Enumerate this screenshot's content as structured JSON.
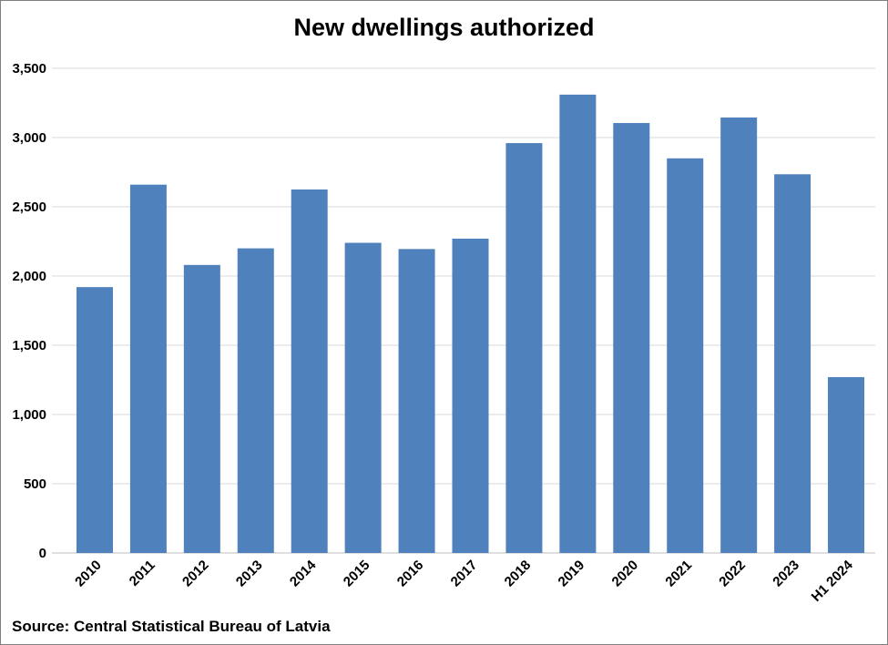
{
  "chart_data": {
    "type": "bar",
    "title": "New dwellings authorized",
    "source": "Source: Central Statistical Bureau of Latvia",
    "xlabel": "",
    "ylabel": "",
    "categories": [
      "2010",
      "2011",
      "2012",
      "2013",
      "2014",
      "2015",
      "2016",
      "2017",
      "2018",
      "2019",
      "2020",
      "2021",
      "2022",
      "2023",
      "H1 2024"
    ],
    "values": [
      1920,
      2660,
      2080,
      2200,
      2625,
      2240,
      2195,
      2270,
      2960,
      3310,
      3105,
      2850,
      3145,
      2735,
      1270
    ],
    "ylim": [
      0,
      3500
    ],
    "yticks": [
      0,
      500,
      1000,
      1500,
      2000,
      2500,
      3000,
      3500
    ],
    "ytick_labels": [
      "0",
      "500",
      "1,000",
      "1,500",
      "2,000",
      "2,500",
      "3,000",
      "3,500"
    ],
    "grid": true,
    "legend": "none",
    "colors": {
      "bar": "#4F81BD",
      "grid": "#d9d9d9"
    }
  }
}
